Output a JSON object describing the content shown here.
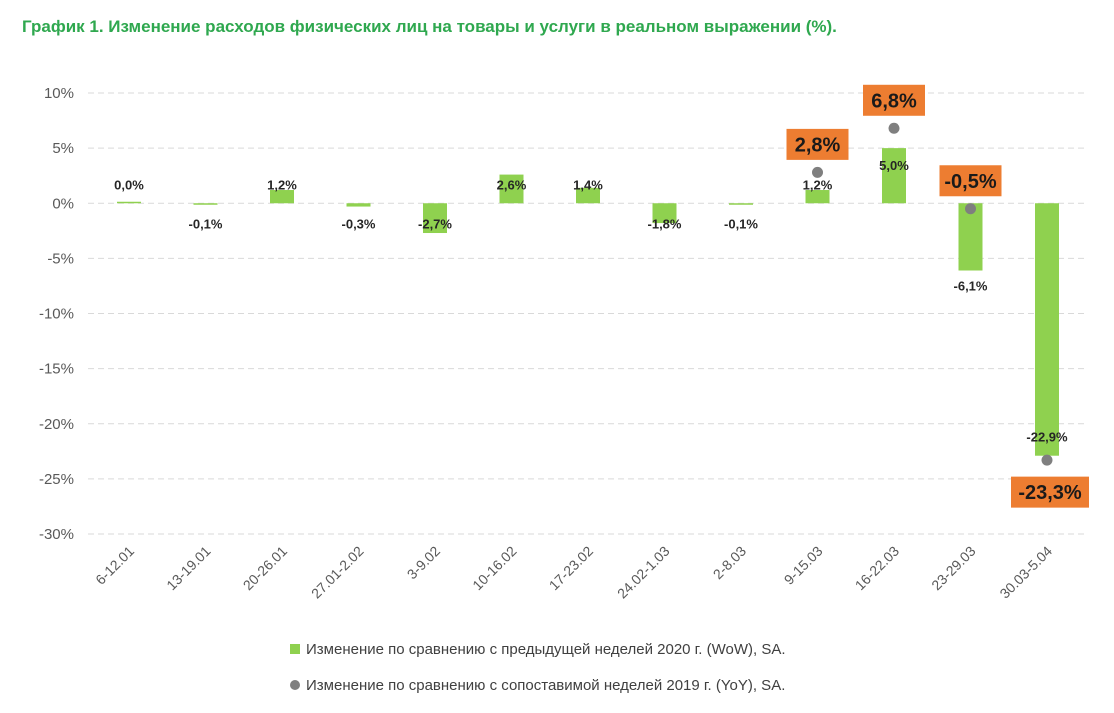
{
  "chart_data": {
    "type": "bar",
    "title": "График 1. Изменение расходов физических лиц на товары и услуги в реальном выражении (%).",
    "categories": [
      "6-12.01",
      "13-19.01",
      "20-26.01",
      "27.01-2.02",
      "3-9.02",
      "10-16.02",
      "17-23.02",
      "24.02-1.03",
      "2-8.03",
      "9-15.03",
      "16-22.03",
      "23-29.03",
      "30.03-5.04"
    ],
    "series": [
      {
        "name": "Изменение по сравнению с предыдущей неделей 2020 г. (WoW), SA.",
        "type": "bar",
        "color": "#8fd14f",
        "values": [
          0.0,
          -0.1,
          1.2,
          -0.3,
          -2.7,
          2.6,
          1.4,
          -1.8,
          -0.1,
          1.2,
          5.0,
          -6.1,
          -22.9
        ],
        "labels": [
          "0,0%",
          "-0,1%",
          "1,2%",
          "-0,3%",
          "-2,7%",
          "2,6%",
          "1,4%",
          "-1,8%",
          "-0,1%",
          "1,2%",
          "5,0%",
          "-6,1%",
          "-22,9%"
        ]
      },
      {
        "name": "Изменение по сравнению с сопоставимой неделей 2019 г. (YoY), SA.",
        "type": "scatter",
        "color": "#7f7f7f",
        "points": [
          {
            "category": "9-15.03",
            "value": 2.8,
            "label": "2,8%"
          },
          {
            "category": "16-22.03",
            "value": 6.8,
            "label": "6,8%"
          },
          {
            "category": "23-29.03",
            "value": -0.5,
            "label": "-0,5%"
          },
          {
            "category": "30.03-5.04",
            "value": -23.3,
            "label": "-23,3%"
          }
        ],
        "label_box_color": "#ed7d31"
      }
    ],
    "ylim": [
      -30,
      10
    ],
    "yticks": [
      10,
      5,
      0,
      -5,
      -10,
      -15,
      -20,
      -25,
      -30
    ],
    "ytick_labels": [
      "10%",
      "5%",
      "0%",
      "-5%",
      "-10%",
      "-15%",
      "-20%",
      "-25%",
      "-30%"
    ],
    "grid": true,
    "legend_position": "bottom"
  }
}
